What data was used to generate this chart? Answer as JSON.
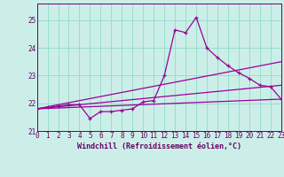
{
  "bg_color": "#cceee8",
  "line_color": "#990099",
  "grid_color": "#99ddcc",
  "axis_color": "#660066",
  "tick_color": "#660066",
  "xlabel": "Windchill (Refroidissement éolien,°C)",
  "ylim": [
    21.0,
    25.6
  ],
  "xlim": [
    0,
    23
  ],
  "yticks": [
    21,
    22,
    23,
    24,
    25
  ],
  "xticks": [
    0,
    1,
    2,
    3,
    4,
    5,
    6,
    7,
    8,
    9,
    10,
    11,
    12,
    13,
    14,
    15,
    16,
    17,
    18,
    19,
    20,
    21,
    22,
    23
  ],
  "main_x": [
    0,
    1,
    2,
    3,
    4,
    5,
    6,
    7,
    8,
    9,
    10,
    11,
    12,
    13,
    14,
    15,
    16,
    17,
    18,
    19,
    20,
    21,
    22,
    23
  ],
  "main_y": [
    21.8,
    21.85,
    21.9,
    21.95,
    21.95,
    21.45,
    21.7,
    21.7,
    21.75,
    21.8,
    22.05,
    22.1,
    23.0,
    24.65,
    24.55,
    25.1,
    24.0,
    23.65,
    23.35,
    23.1,
    22.9,
    22.65,
    22.6,
    22.15
  ],
  "line2_x": [
    0,
    23
  ],
  "line2_y": [
    21.8,
    22.15
  ],
  "line3_x": [
    0,
    23
  ],
  "line3_y": [
    21.8,
    23.5
  ],
  "line4_x": [
    0,
    23
  ],
  "line4_y": [
    21.8,
    22.65
  ]
}
